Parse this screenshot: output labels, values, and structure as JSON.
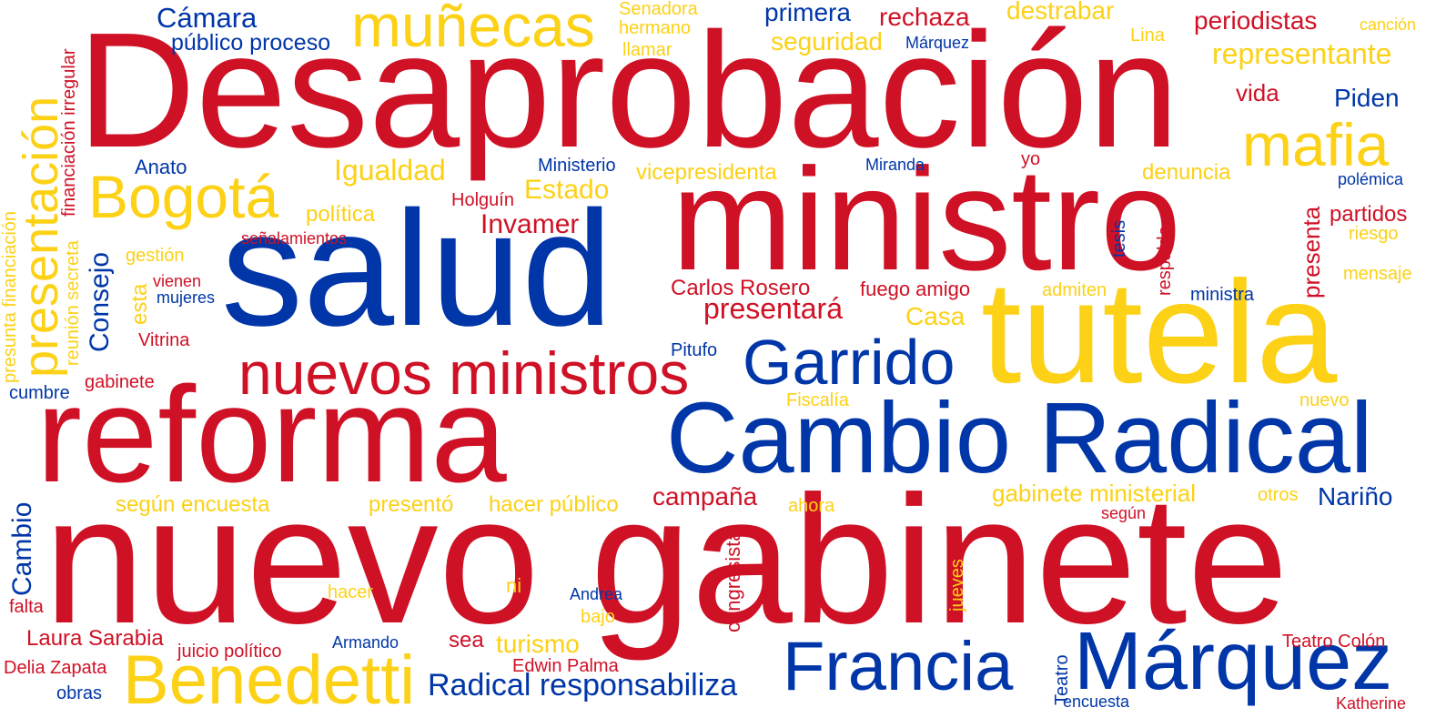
{
  "palette": {
    "red": "#cf1126",
    "yellow": "#fcd116",
    "blue": "#0036a8"
  },
  "words": [
    {
      "text": "Desaprobación",
      "color": "red"
    },
    {
      "text": "ministro",
      "color": "red"
    },
    {
      "text": "salud",
      "color": "blue"
    },
    {
      "text": "tutela",
      "color": "yellow"
    },
    {
      "text": "nuevo gabinete",
      "color": "red"
    },
    {
      "text": "reforma",
      "color": "red"
    },
    {
      "text": "Cambio Radical",
      "color": "blue"
    },
    {
      "text": "nuevos ministros",
      "color": "red"
    },
    {
      "text": "Garrido",
      "color": "blue"
    },
    {
      "text": "Francia",
      "color": "blue"
    },
    {
      "text": "Márquez",
      "color": "blue"
    },
    {
      "text": "Benedetti",
      "color": "yellow"
    },
    {
      "text": "muñecas",
      "color": "yellow"
    },
    {
      "text": "mafia",
      "color": "yellow"
    },
    {
      "text": "Bogotá",
      "color": "yellow"
    },
    {
      "text": "presentación",
      "color": "yellow"
    },
    {
      "text": "Radical responsabiliza",
      "color": "blue"
    },
    {
      "text": "Cámara",
      "color": "blue"
    },
    {
      "text": "público proceso",
      "color": "blue"
    },
    {
      "text": "Senadora",
      "color": "yellow"
    },
    {
      "text": "hermano",
      "color": "yellow"
    },
    {
      "text": "llamar",
      "color": "yellow"
    },
    {
      "text": "primera",
      "color": "blue"
    },
    {
      "text": "rechaza",
      "color": "red"
    },
    {
      "text": "destrabar",
      "color": "yellow"
    },
    {
      "text": "periodistas",
      "color": "red"
    },
    {
      "text": "canción",
      "color": "yellow"
    },
    {
      "text": "seguridad",
      "color": "yellow"
    },
    {
      "text": "Márquez",
      "color": "blue"
    },
    {
      "text": "Lina",
      "color": "yellow"
    },
    {
      "text": "representante",
      "color": "yellow"
    },
    {
      "text": "vida",
      "color": "red"
    },
    {
      "text": "Piden",
      "color": "blue"
    },
    {
      "text": "Anato",
      "color": "blue"
    },
    {
      "text": "Igualdad",
      "color": "yellow"
    },
    {
      "text": "Ministerio",
      "color": "blue"
    },
    {
      "text": "vicepresidenta",
      "color": "yellow"
    },
    {
      "text": "Miranda",
      "color": "blue"
    },
    {
      "text": "yo",
      "color": "red"
    },
    {
      "text": "denuncia",
      "color": "yellow"
    },
    {
      "text": "polémica",
      "color": "blue"
    },
    {
      "text": "Holguín",
      "color": "red"
    },
    {
      "text": "Estado",
      "color": "yellow"
    },
    {
      "text": "política",
      "color": "yellow"
    },
    {
      "text": "Invamer",
      "color": "red"
    },
    {
      "text": "partidos",
      "color": "red"
    },
    {
      "text": "riesgo",
      "color": "yellow"
    },
    {
      "text": "gestión",
      "color": "yellow"
    },
    {
      "text": "señalamientos",
      "color": "red"
    },
    {
      "text": "mensaje",
      "color": "yellow"
    },
    {
      "text": "vienen",
      "color": "red"
    },
    {
      "text": "mujeres",
      "color": "blue"
    },
    {
      "text": "Carlos Rosero",
      "color": "red"
    },
    {
      "text": "fuego amigo",
      "color": "red"
    },
    {
      "text": "admiten",
      "color": "yellow"
    },
    {
      "text": "ministra",
      "color": "blue"
    },
    {
      "text": "presentará",
      "color": "red"
    },
    {
      "text": "Casa",
      "color": "yellow"
    },
    {
      "text": "Vitrina",
      "color": "red"
    },
    {
      "text": "Pitufo",
      "color": "blue"
    },
    {
      "text": "gabinete",
      "color": "red"
    },
    {
      "text": "cumbre",
      "color": "blue"
    },
    {
      "text": "Fiscalía",
      "color": "yellow"
    },
    {
      "text": "nuevo",
      "color": "yellow"
    },
    {
      "text": "según encuesta",
      "color": "yellow"
    },
    {
      "text": "presentó",
      "color": "yellow"
    },
    {
      "text": "hacer público",
      "color": "yellow"
    },
    {
      "text": "campaña",
      "color": "red"
    },
    {
      "text": "ahora",
      "color": "yellow"
    },
    {
      "text": "gabinete ministerial",
      "color": "yellow"
    },
    {
      "text": "otros",
      "color": "yellow"
    },
    {
      "text": "Nariño",
      "color": "blue"
    },
    {
      "text": "según",
      "color": "red"
    },
    {
      "text": "hacer",
      "color": "yellow"
    },
    {
      "text": "ni",
      "color": "yellow"
    },
    {
      "text": "Andrea",
      "color": "blue"
    },
    {
      "text": "bajo",
      "color": "yellow"
    },
    {
      "text": "falta",
      "color": "red"
    },
    {
      "text": "Laura Sarabia",
      "color": "red"
    },
    {
      "text": "juicio político",
      "color": "red"
    },
    {
      "text": "Armando",
      "color": "blue"
    },
    {
      "text": "sea",
      "color": "red"
    },
    {
      "text": "turismo",
      "color": "yellow"
    },
    {
      "text": "Delia Zapata",
      "color": "red"
    },
    {
      "text": "Edwin Palma",
      "color": "red"
    },
    {
      "text": "obras",
      "color": "blue"
    },
    {
      "text": "Teatro Colón",
      "color": "red"
    },
    {
      "text": "encuesta",
      "color": "blue"
    },
    {
      "text": "Katherine",
      "color": "red"
    },
    {
      "text": "financiación irregular",
      "color": "red"
    },
    {
      "text": "presunta financiación",
      "color": "yellow"
    },
    {
      "text": "reunión secreta",
      "color": "yellow"
    },
    {
      "text": "Consejo",
      "color": "blue"
    },
    {
      "text": "esta",
      "color": "yellow"
    },
    {
      "text": "tesis",
      "color": "blue"
    },
    {
      "text": "respaldo",
      "color": "red"
    },
    {
      "text": "presenta",
      "color": "red"
    },
    {
      "text": "Cambio",
      "color": "blue"
    },
    {
      "text": "congresista",
      "color": "red"
    },
    {
      "text": "jueves",
      "color": "yellow"
    },
    {
      "text": "Teatro",
      "color": "blue"
    }
  ]
}
